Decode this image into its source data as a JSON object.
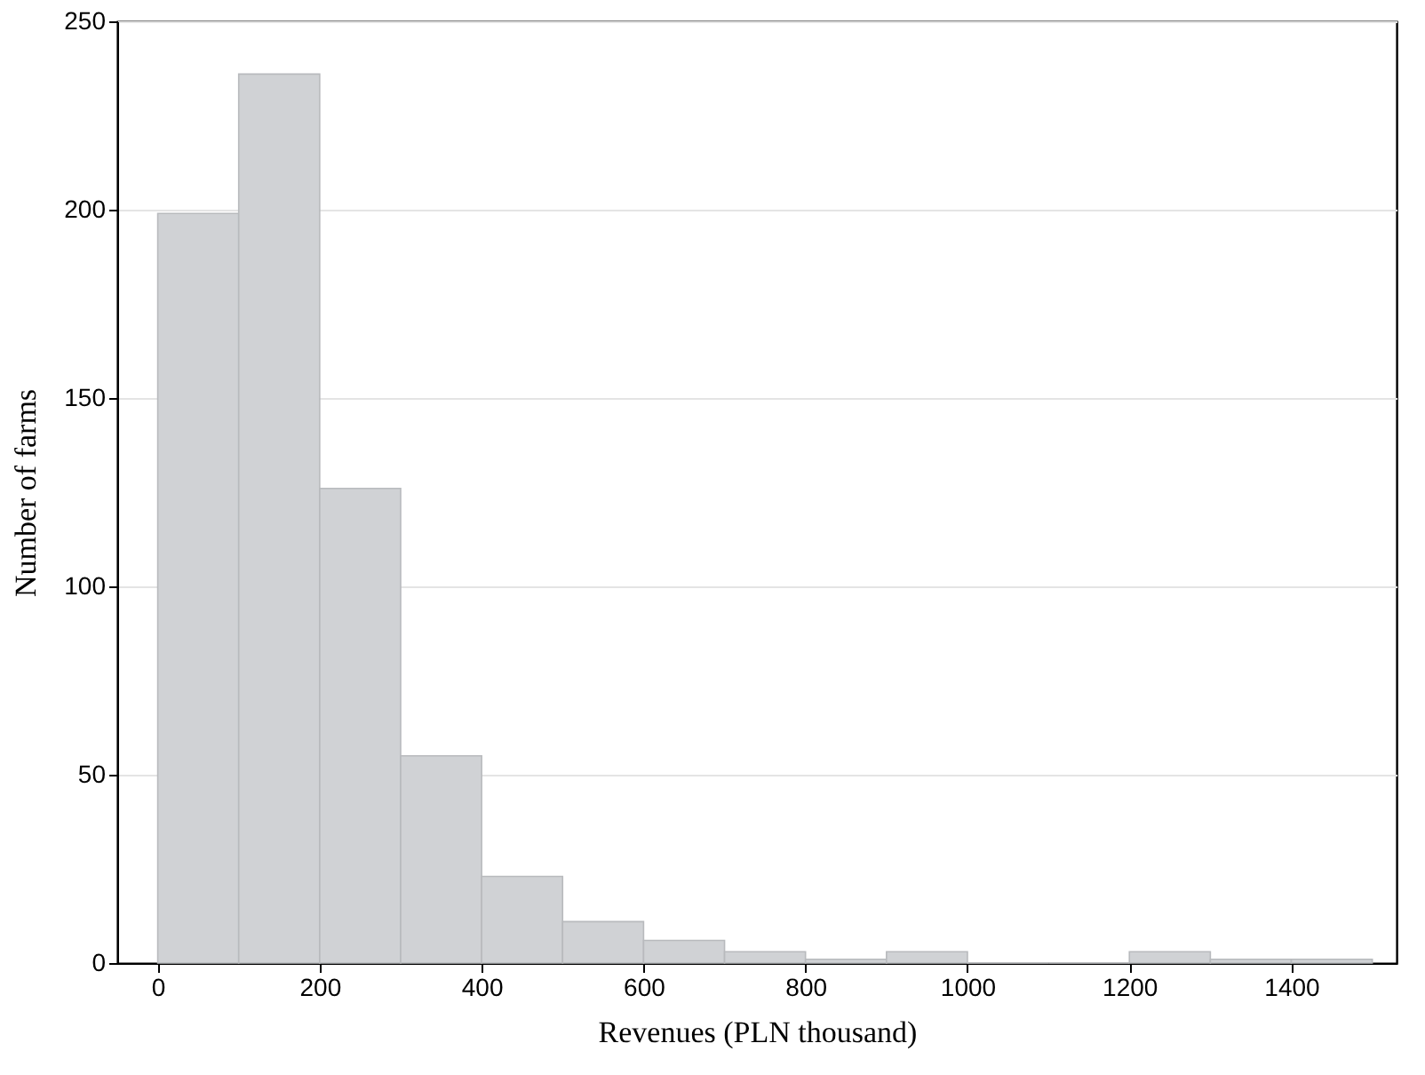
{
  "chart_data": {
    "type": "histogram",
    "xlabel": "Revenues (PLN thousand)",
    "ylabel": "Number of farms",
    "bins": [
      0,
      100,
      200,
      300,
      400,
      500,
      600,
      700,
      800,
      900,
      1000,
      1100,
      1200,
      1300,
      1400,
      1500
    ],
    "values": [
      199,
      236,
      126,
      55,
      23,
      11,
      6,
      3,
      1,
      3,
      0,
      0,
      3,
      1,
      1
    ],
    "color": "#d0d2d5",
    "xlim": [
      -50,
      1530
    ],
    "xticks": [
      0,
      200,
      400,
      600,
      800,
      1000,
      1200,
      1400
    ],
    "ylim": [
      0,
      250
    ],
    "yticks": [
      0,
      50,
      100,
      150,
      200,
      250
    ],
    "grid": "y"
  }
}
